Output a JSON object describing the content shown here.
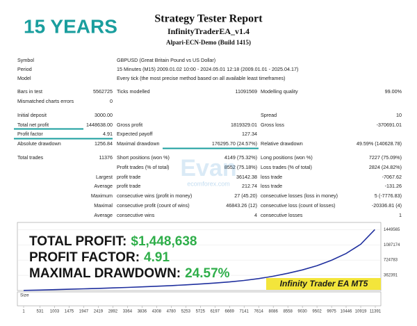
{
  "header": {
    "badge": "15 YEARS",
    "title": "Strategy Tester Report",
    "ea": "InfinityTraderEA_v1.4",
    "server": "Alpari-ECN-Demo (Build 1415)"
  },
  "report": {
    "rows": [
      [
        "Symbol",
        null,
        "GBPUSD (Great Britain Pound vs US Dollar)",
        null,
        null,
        null
      ],
      [
        "Period",
        null,
        "15 Minutes (M15) 2009.01.02 10:00 - 2024.05.01 12:18 (2009.01.01 - 2025.04.17)",
        null,
        null,
        null
      ],
      [
        "Model",
        null,
        "Every tick (the most precise method based on all available least timeframes)",
        null,
        null,
        null
      ],
      [
        "Bars in test",
        "5562725",
        "Ticks modelled",
        "11091569",
        "Modelling quality",
        "99.00%"
      ],
      [
        "Mismatched charts errors",
        "0",
        null,
        null,
        null,
        null
      ],
      [
        "Initial deposit",
        "3000.00",
        null,
        null,
        "Spread",
        "10"
      ],
      [
        "Total net profit",
        "1448638.00",
        "Gross profit",
        "1819329.01",
        "Gross loss",
        "-370691.01"
      ],
      [
        "Profit factor",
        "4.91",
        "Expected payoff",
        "127.34",
        null,
        null
      ],
      [
        "Absolute drawdown",
        "1256.84",
        "Maximal drawdown",
        "176295.70 (24.57%)",
        "Relative drawdown",
        "49.59% (140628.78)"
      ],
      [
        "Total trades",
        "11376",
        "Short positions (won %)",
        "4149 (75.32%)",
        "Long positions (won %)",
        "7227 (75.09%)"
      ],
      [
        null,
        null,
        "Profit trades (% of total)",
        "8552 (75.18%)",
        "Loss trades (% of total)",
        "2824 (24.82%)"
      ],
      [
        null,
        "Largest",
        "profit trade",
        "36142.38",
        "loss trade",
        "-7067.62"
      ],
      [
        null,
        "Average",
        "profit trade",
        "212.74",
        "loss trade",
        "-131.26"
      ],
      [
        null,
        "Maximum",
        "consecutive wins (profit in money)",
        "27 (45.20)",
        "consecutive losses (loss in money)",
        "5 (-7776.83)"
      ],
      [
        null,
        "Maximal",
        "consecutive profit (count of wins)",
        "46843.26 (12)",
        "consecutive loss (count of losses)",
        "-20336.81 (4)"
      ],
      [
        null,
        "Average",
        "consecutive wins",
        "4",
        "consecutive losses",
        "1"
      ]
    ]
  },
  "watermark": [
    "Evan",
    "ecomforex.com"
  ],
  "graph": {
    "overlay": [
      {
        "label": "TOTAL PROFIT:",
        "value": "$1,448,638"
      },
      {
        "label": "PROFIT FACTOR:",
        "value": "4.91"
      },
      {
        "label": "MAXIMAL DRAWDOWN:",
        "value": "24.57%"
      }
    ],
    "brand": "Infinity Trader EA MT5",
    "size_label": "Size",
    "xlim": [
      1,
      11391
    ],
    "ylim": [
      0,
      1520000
    ],
    "xticks": [
      1,
      531,
      1003,
      1475,
      1947,
      2419,
      2892,
      3364,
      3836,
      4308,
      4780,
      5253,
      5725,
      6197,
      6669,
      7141,
      7614,
      8086,
      8558,
      9030,
      9502,
      9975,
      10446,
      10919,
      11391
    ],
    "yticks": [
      362391,
      724783,
      1087174,
      1449565
    ],
    "balance": {
      "color": "#1f2f9e",
      "x": [
        1,
        531,
        1003,
        1475,
        1947,
        2419,
        2892,
        3364,
        3836,
        4308,
        4780,
        5253,
        5725,
        6197,
        6669,
        7141,
        7614,
        8086,
        8558,
        9030,
        9502,
        9975,
        10446,
        10919,
        11376
      ],
      "y": [
        3000,
        12000,
        22000,
        32000,
        42000,
        52000,
        62000,
        74000,
        88000,
        102000,
        118000,
        135000,
        155000,
        178000,
        205000,
        240000,
        285000,
        340000,
        410000,
        490000,
        590000,
        720000,
        880000,
        1100000,
        1448638
      ]
    }
  }
}
